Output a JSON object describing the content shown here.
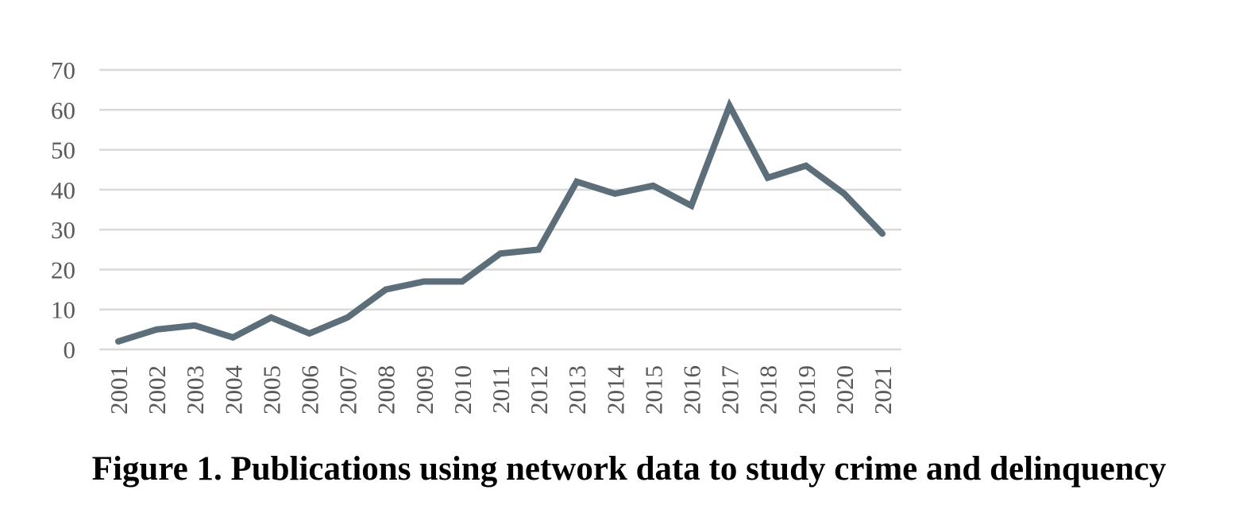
{
  "chart_data": {
    "type": "line",
    "x": [
      "2001",
      "2002",
      "2003",
      "2004",
      "2005",
      "2006",
      "2007",
      "2008",
      "2009",
      "2010",
      "2011",
      "2012",
      "2013",
      "2014",
      "2015",
      "2016",
      "2017",
      "2018",
      "2019",
      "2020",
      "2021"
    ],
    "series": [
      {
        "values": [
          2,
          5,
          6,
          3,
          8,
          4,
          8,
          15,
          17,
          17,
          24,
          25,
          42,
          39,
          41,
          36,
          61,
          43,
          46,
          39,
          29
        ]
      }
    ],
    "yticks": [
      "0",
      "10",
      "20",
      "30",
      "40",
      "50",
      "60",
      "70"
    ],
    "ylim": [
      0,
      70
    ],
    "grid": true,
    "legend": "none",
    "caption": "Figure 1. Publications using network data to study crime and delinquency",
    "colors": {
      "line": "#5b6e7a",
      "grid": "#d9d9d9",
      "tick": "#595959"
    }
  }
}
